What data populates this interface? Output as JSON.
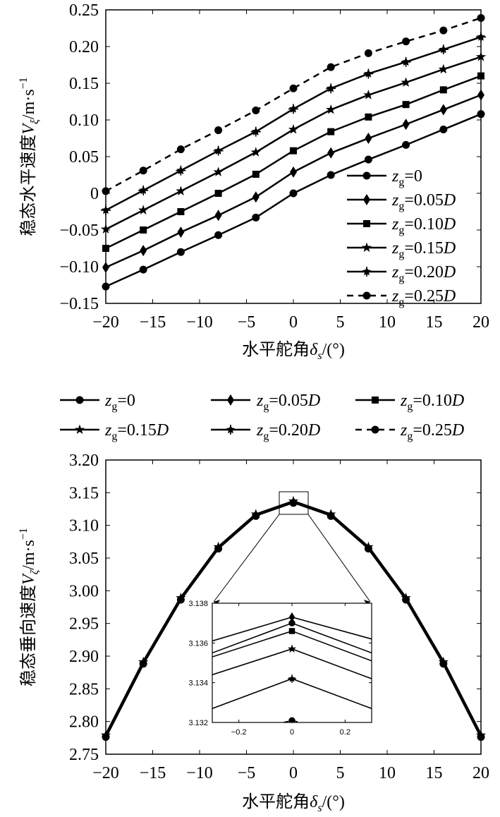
{
  "chart_data": [
    {
      "type": "line",
      "xlabel": "水平舵角δs/(°)",
      "ylabel": "稳态水平速度Vξ/m·s⁻¹",
      "xlabel_parts": {
        "prefix": "水平舵角",
        "sym": "δ",
        "sub": "s",
        "suffix": "/(°)"
      },
      "ylabel_parts": {
        "prefix": "稳态水平速度",
        "sym": "V",
        "sub": "ξ",
        "suffix": "/m·s",
        "sup": "−1"
      },
      "xlim": [
        -20,
        20
      ],
      "ylim": [
        -0.15,
        0.25
      ],
      "x_ticks": [
        -20,
        -15,
        -10,
        -5,
        0,
        5,
        10,
        15,
        20
      ],
      "x_tick_labels": [
        "−20",
        "−15",
        "−10",
        "−5",
        "0",
        "5",
        "10",
        "15",
        "20"
      ],
      "y_ticks": [
        -0.15,
        -0.1,
        -0.05,
        0,
        0.05,
        0.1,
        0.15,
        0.2,
        0.25
      ],
      "y_tick_labels": [
        "−0.15",
        "−0.10",
        "−0.05",
        "0",
        "0.05",
        "0.10",
        "0.15",
        "0.20",
        "0.25"
      ],
      "legend_position": "bottom-right",
      "x": [
        -20,
        -16,
        -12,
        -8,
        -4,
        0,
        4,
        8,
        12,
        16,
        20
      ],
      "series": [
        {
          "name": "zg=0",
          "label_parts": {
            "base": "z",
            "sub": "g",
            "rest": "=0",
            "unit": ""
          },
          "marker": "circle",
          "dash": false,
          "values": [
            -0.127,
            -0.104,
            -0.08,
            -0.057,
            -0.033,
            0.0,
            0.025,
            0.046,
            0.066,
            0.087,
            0.108
          ]
        },
        {
          "name": "zg=0.05D",
          "label_parts": {
            "base": "z",
            "sub": "g",
            "rest": "=0.05",
            "unit": "D"
          },
          "marker": "diamond",
          "dash": false,
          "values": [
            -0.101,
            -0.078,
            -0.053,
            -0.03,
            -0.005,
            0.029,
            0.055,
            0.075,
            0.094,
            0.114,
            0.134
          ]
        },
        {
          "name": "zg=0.10D",
          "label_parts": {
            "base": "z",
            "sub": "g",
            "rest": "=0.10",
            "unit": "D"
          },
          "marker": "square",
          "dash": false,
          "values": [
            -0.075,
            -0.05,
            -0.025,
            0.0,
            0.026,
            0.058,
            0.084,
            0.104,
            0.121,
            0.141,
            0.16
          ]
        },
        {
          "name": "zg=0.15D",
          "label_parts": {
            "base": "z",
            "sub": "g",
            "rest": "=0.15",
            "unit": "D"
          },
          "marker": "star",
          "dash": false,
          "values": [
            -0.049,
            -0.023,
            0.003,
            0.029,
            0.056,
            0.087,
            0.114,
            0.134,
            0.151,
            0.169,
            0.186
          ]
        },
        {
          "name": "zg=0.20D",
          "label_parts": {
            "base": "z",
            "sub": "g",
            "rest": "=0.20",
            "unit": "D"
          },
          "marker": "asterisk",
          "dash": false,
          "values": [
            -0.023,
            0.004,
            0.031,
            0.058,
            0.084,
            0.115,
            0.143,
            0.163,
            0.179,
            0.196,
            0.213
          ]
        },
        {
          "name": "zg=0.25D",
          "label_parts": {
            "base": "z",
            "sub": "g",
            "rest": "=0.25",
            "unit": "D"
          },
          "marker": "circle",
          "dash": true,
          "values": [
            0.003,
            0.031,
            0.06,
            0.086,
            0.113,
            0.143,
            0.172,
            0.191,
            0.207,
            0.222,
            0.239
          ]
        }
      ]
    },
    {
      "type": "line",
      "xlabel": "水平舵角δs/(°)",
      "ylabel": "稳态垂向速度Vζ/m·s⁻¹",
      "xlabel_parts": {
        "prefix": "水平舵角",
        "sym": "δ",
        "sub": "s",
        "suffix": "/(°)"
      },
      "ylabel_parts": {
        "prefix": "稳态垂向速度",
        "sym": "V",
        "sub": "ζ",
        "suffix": "/m·s",
        "sup": "−1"
      },
      "xlim": [
        -20,
        20
      ],
      "ylim": [
        2.75,
        3.2
      ],
      "x_ticks": [
        -20,
        -15,
        -10,
        -5,
        0,
        5,
        10,
        15,
        20
      ],
      "x_tick_labels": [
        "−20",
        "−15",
        "−10",
        "−5",
        "0",
        "5",
        "10",
        "15",
        "20"
      ],
      "y_ticks": [
        2.75,
        2.8,
        2.85,
        2.9,
        2.95,
        3.0,
        3.05,
        3.1,
        3.15,
        3.2
      ],
      "y_tick_labels": [
        "2.75",
        "2.80",
        "2.85",
        "2.90",
        "2.95",
        "3.00",
        "3.05",
        "3.10",
        "3.15",
        "3.20"
      ],
      "legend_position": "top-outside",
      "x": [
        -20,
        -16,
        -12,
        -8,
        -4,
        0,
        4,
        8,
        12,
        16,
        20
      ],
      "values": [
        2.778,
        2.89,
        2.988,
        3.066,
        3.116,
        3.136,
        3.116,
        3.066,
        2.988,
        2.89,
        2.778
      ],
      "inset": {
        "xlim": [
          -0.3,
          0.3
        ],
        "ylim": [
          3.132,
          3.138
        ],
        "x_ticks": [
          -0.2,
          0,
          0.2
        ],
        "x_tick_labels": [
          "−0.2",
          "0",
          "0.2"
        ],
        "y_ticks": [
          3.132,
          3.134,
          3.136,
          3.138
        ],
        "y_tick_labels": [
          "3.132",
          "3.134",
          "3.136",
          "3.138"
        ],
        "x": [
          -0.3,
          0,
          0.3
        ],
        "series_values": [
          [
            3.1355,
            3.137,
            3.1355
          ],
          [
            3.1361,
            3.1373,
            3.1362
          ],
          [
            3.1353,
            3.1366,
            3.1351
          ],
          [
            3.1344,
            3.1357,
            3.1342
          ],
          [
            3.1327,
            3.1342,
            3.1327
          ],
          [
            3.1312,
            3.1321,
            3.1312
          ]
        ],
        "marker_series_indexes": [
          0,
          1,
          2,
          3,
          4,
          5
        ]
      }
    }
  ]
}
